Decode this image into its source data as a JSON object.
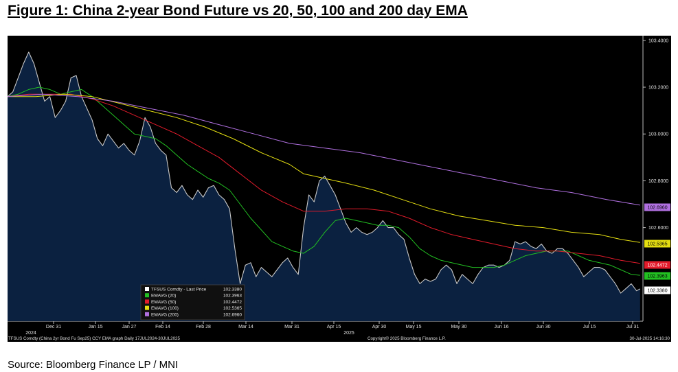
{
  "figure": {
    "title": "Figure 1:  China 2-year Bond Future vs 20, 50, 100 and 200 day EMA",
    "source": "Source: Bloomberg Finance LP / MNI"
  },
  "chart_data": {
    "type": "line",
    "x_ticks": [
      "Dec 31",
      "Jan 15",
      "Jan 27",
      "Feb 14",
      "Feb 28",
      "Mar 14",
      "Mar 31",
      "Apr 15",
      "Apr 30",
      "May 15",
      "May 30",
      "Jun 16",
      "Jun 30",
      "Jul 15",
      "Jul 31"
    ],
    "year_labels": [
      "2024",
      "2025"
    ],
    "y_ticks": [
      "103.4000",
      "103.2000",
      "103.0000",
      "102.8000",
      "102.6000"
    ],
    "ylim": [
      102.2,
      103.42
    ],
    "footer_left": "TFSUS Comdty (China 2yr Bond Fu Sep25) CCY EMA graph  Daily 17JUL2024-30JUL2025",
    "footer_center": "Copyright© 2025 Bloomberg Finance L.P.",
    "footer_right": "30-Jul-2025 14:16:30",
    "legend": [
      {
        "label": "TFSUS Comdty - Last Price",
        "value": "102.3380",
        "color": "#ffffff"
      },
      {
        "label": "EMAVG (20)",
        "value": "102.3963",
        "color": "#22c022"
      },
      {
        "label": "EMAVG (50)",
        "value": "102.4472",
        "color": "#e21b2b"
      },
      {
        "label": "EMAVG (100)",
        "value": "102.5365",
        "color": "#e5df11"
      },
      {
        "label": "EMAVG (200)",
        "value": "102.6960",
        "color": "#b070e0"
      }
    ],
    "series": [
      {
        "name": "TFSUS Comdty - Last Price",
        "color": "#c8c8c8",
        "fill": "#0b2140",
        "points": [
          [
            0,
            103.16
          ],
          [
            1.5,
            103.18
          ],
          [
            3,
            103.24
          ],
          [
            4.5,
            103.3
          ],
          [
            6,
            103.35
          ],
          [
            7.5,
            103.3
          ],
          [
            9,
            103.22
          ],
          [
            10.5,
            103.14
          ],
          [
            12,
            103.16
          ],
          [
            13.5,
            103.07
          ],
          [
            15,
            103.1
          ],
          [
            16.5,
            103.14
          ],
          [
            18,
            103.24
          ],
          [
            19.5,
            103.25
          ],
          [
            21,
            103.16
          ],
          [
            22.5,
            103.11
          ],
          [
            24,
            103.06
          ],
          [
            25.5,
            102.98
          ],
          [
            27,
            102.95
          ],
          [
            28.5,
            103.0
          ],
          [
            30,
            102.97
          ],
          [
            31.5,
            102.94
          ],
          [
            33,
            102.96
          ],
          [
            34.5,
            102.93
          ],
          [
            36,
            102.91
          ],
          [
            37.5,
            102.97
          ],
          [
            39,
            103.07
          ],
          [
            40.5,
            103.03
          ],
          [
            42,
            102.96
          ],
          [
            43.5,
            102.93
          ],
          [
            45,
            102.91
          ],
          [
            46.5,
            102.77
          ],
          [
            48,
            102.75
          ],
          [
            49.5,
            102.78
          ],
          [
            51,
            102.74
          ],
          [
            52.5,
            102.72
          ],
          [
            54,
            102.76
          ],
          [
            55.5,
            102.73
          ],
          [
            57,
            102.77
          ],
          [
            58.5,
            102.78
          ],
          [
            60,
            102.74
          ],
          [
            61.5,
            102.72
          ],
          [
            63,
            102.68
          ],
          [
            64.5,
            102.51
          ],
          [
            66,
            102.36
          ],
          [
            67.5,
            102.44
          ],
          [
            69,
            102.45
          ],
          [
            70.5,
            102.39
          ],
          [
            72,
            102.43
          ],
          [
            73.5,
            102.41
          ],
          [
            75,
            102.39
          ],
          [
            76.5,
            102.42
          ],
          [
            78,
            102.45
          ],
          [
            79.5,
            102.47
          ],
          [
            81,
            102.43
          ],
          [
            82.5,
            102.4
          ],
          [
            84,
            102.6
          ],
          [
            85.5,
            102.74
          ],
          [
            87,
            102.71
          ],
          [
            88.5,
            102.8
          ],
          [
            90,
            102.82
          ],
          [
            91.5,
            102.78
          ],
          [
            93,
            102.74
          ],
          [
            94.5,
            102.68
          ],
          [
            96,
            102.62
          ],
          [
            97.5,
            102.58
          ],
          [
            99,
            102.6
          ],
          [
            100.5,
            102.58
          ],
          [
            102,
            102.57
          ],
          [
            103.5,
            102.58
          ],
          [
            105,
            102.6
          ],
          [
            106.5,
            102.63
          ],
          [
            108,
            102.6
          ],
          [
            109.5,
            102.6
          ],
          [
            111,
            102.57
          ],
          [
            112.5,
            102.55
          ],
          [
            114,
            102.47
          ],
          [
            115.5,
            102.4
          ],
          [
            117,
            102.36
          ],
          [
            118.5,
            102.38
          ],
          [
            120,
            102.37
          ],
          [
            121.5,
            102.38
          ],
          [
            123,
            102.42
          ],
          [
            124.5,
            102.44
          ],
          [
            126,
            102.42
          ],
          [
            127.5,
            102.36
          ],
          [
            129,
            102.4
          ],
          [
            130.5,
            102.38
          ],
          [
            132,
            102.36
          ],
          [
            133.5,
            102.4
          ],
          [
            135,
            102.43
          ],
          [
            136.5,
            102.44
          ],
          [
            138,
            102.44
          ],
          [
            139.5,
            102.43
          ],
          [
            141,
            102.44
          ],
          [
            142.5,
            102.46
          ],
          [
            144,
            102.54
          ],
          [
            145.5,
            102.53
          ],
          [
            147,
            102.54
          ],
          [
            148.5,
            102.52
          ],
          [
            150,
            102.51
          ],
          [
            151.5,
            102.53
          ],
          [
            153,
            102.5
          ],
          [
            154.5,
            102.49
          ],
          [
            156,
            102.51
          ],
          [
            157.5,
            102.51
          ],
          [
            159,
            102.49
          ],
          [
            160.5,
            102.46
          ],
          [
            162,
            102.43
          ],
          [
            163.5,
            102.39
          ],
          [
            165,
            102.41
          ],
          [
            166.5,
            102.43
          ],
          [
            168,
            102.43
          ],
          [
            169.5,
            102.42
          ],
          [
            171,
            102.39
          ],
          [
            172.5,
            102.36
          ],
          [
            174,
            102.32
          ],
          [
            175.5,
            102.34
          ],
          [
            177,
            102.36
          ],
          [
            178.5,
            102.33
          ],
          [
            179.5,
            102.338
          ]
        ]
      },
      {
        "name": "EMAVG (20)",
        "color": "#22c022",
        "points": [
          [
            0,
            103.16
          ],
          [
            3,
            103.17
          ],
          [
            6,
            103.19
          ],
          [
            9,
            103.2
          ],
          [
            12,
            103.19
          ],
          [
            15,
            103.17
          ],
          [
            18,
            103.18
          ],
          [
            21,
            103.19
          ],
          [
            24,
            103.16
          ],
          [
            27,
            103.12
          ],
          [
            30,
            103.08
          ],
          [
            33,
            103.04
          ],
          [
            36,
            103.0
          ],
          [
            39,
            102.99
          ],
          [
            42,
            102.98
          ],
          [
            45,
            102.95
          ],
          [
            48,
            102.91
          ],
          [
            51,
            102.87
          ],
          [
            54,
            102.84
          ],
          [
            57,
            102.81
          ],
          [
            60,
            102.79
          ],
          [
            63,
            102.76
          ],
          [
            66,
            102.7
          ],
          [
            69,
            102.64
          ],
          [
            72,
            102.59
          ],
          [
            75,
            102.54
          ],
          [
            78,
            102.52
          ],
          [
            81,
            102.5
          ],
          [
            84,
            102.49
          ],
          [
            87,
            102.52
          ],
          [
            90,
            102.58
          ],
          [
            93,
            102.63
          ],
          [
            96,
            102.64
          ],
          [
            99,
            102.63
          ],
          [
            102,
            102.62
          ],
          [
            105,
            102.61
          ],
          [
            108,
            102.61
          ],
          [
            111,
            102.6
          ],
          [
            114,
            102.56
          ],
          [
            117,
            102.51
          ],
          [
            120,
            102.48
          ],
          [
            123,
            102.46
          ],
          [
            126,
            102.45
          ],
          [
            129,
            102.44
          ],
          [
            132,
            102.43
          ],
          [
            135,
            102.43
          ],
          [
            138,
            102.43
          ],
          [
            141,
            102.44
          ],
          [
            144,
            102.46
          ],
          [
            147,
            102.48
          ],
          [
            150,
            102.49
          ],
          [
            153,
            102.5
          ],
          [
            156,
            102.5
          ],
          [
            159,
            102.5
          ],
          [
            162,
            102.48
          ],
          [
            165,
            102.46
          ],
          [
            168,
            102.45
          ],
          [
            171,
            102.44
          ],
          [
            174,
            102.42
          ],
          [
            177,
            102.4
          ],
          [
            179.5,
            102.3963
          ]
        ]
      },
      {
        "name": "EMAVG (50)",
        "color": "#e21b2b",
        "points": [
          [
            0,
            103.16
          ],
          [
            6,
            103.17
          ],
          [
            12,
            103.17
          ],
          [
            18,
            103.17
          ],
          [
            24,
            103.15
          ],
          [
            30,
            103.12
          ],
          [
            36,
            103.08
          ],
          [
            42,
            103.04
          ],
          [
            48,
            103.0
          ],
          [
            54,
            102.95
          ],
          [
            60,
            102.9
          ],
          [
            66,
            102.83
          ],
          [
            72,
            102.76
          ],
          [
            78,
            102.71
          ],
          [
            84,
            102.67
          ],
          [
            90,
            102.67
          ],
          [
            96,
            102.68
          ],
          [
            102,
            102.68
          ],
          [
            108,
            102.67
          ],
          [
            114,
            102.64
          ],
          [
            120,
            102.6
          ],
          [
            126,
            102.57
          ],
          [
            132,
            102.55
          ],
          [
            138,
            102.53
          ],
          [
            144,
            102.51
          ],
          [
            150,
            102.5
          ],
          [
            156,
            102.5
          ],
          [
            162,
            102.49
          ],
          [
            168,
            102.48
          ],
          [
            174,
            102.46
          ],
          [
            179.5,
            102.4472
          ]
        ]
      },
      {
        "name": "EMAVG (100)",
        "color": "#e5df11",
        "points": [
          [
            0,
            103.16
          ],
          [
            8,
            103.16
          ],
          [
            16,
            103.17
          ],
          [
            24,
            103.16
          ],
          [
            32,
            103.13
          ],
          [
            40,
            103.1
          ],
          [
            48,
            103.07
          ],
          [
            56,
            103.03
          ],
          [
            64,
            102.98
          ],
          [
            72,
            102.92
          ],
          [
            80,
            102.87
          ],
          [
            84,
            102.83
          ],
          [
            90,
            102.81
          ],
          [
            96,
            102.79
          ],
          [
            104,
            102.76
          ],
          [
            112,
            102.72
          ],
          [
            120,
            102.68
          ],
          [
            128,
            102.65
          ],
          [
            136,
            102.63
          ],
          [
            144,
            102.61
          ],
          [
            152,
            102.6
          ],
          [
            160,
            102.58
          ],
          [
            168,
            102.57
          ],
          [
            174,
            102.55
          ],
          [
            179.5,
            102.5365
          ]
        ]
      },
      {
        "name": "EMAVG (200)",
        "color": "#b070e0",
        "points": [
          [
            0,
            103.16
          ],
          [
            10,
            103.17
          ],
          [
            20,
            103.16
          ],
          [
            30,
            103.14
          ],
          [
            40,
            103.11
          ],
          [
            50,
            103.08
          ],
          [
            60,
            103.04
          ],
          [
            70,
            103.0
          ],
          [
            80,
            102.96
          ],
          [
            90,
            102.94
          ],
          [
            100,
            102.92
          ],
          [
            110,
            102.89
          ],
          [
            120,
            102.86
          ],
          [
            130,
            102.83
          ],
          [
            140,
            102.8
          ],
          [
            150,
            102.77
          ],
          [
            160,
            102.75
          ],
          [
            170,
            102.72
          ],
          [
            179.5,
            102.696
          ]
        ]
      }
    ],
    "end_labels": [
      {
        "text": "102.6960",
        "value": 102.696,
        "color": "#b070e0"
      },
      {
        "text": "102.5365",
        "value": 102.5365,
        "color": "#e5df11"
      },
      {
        "text": "102.4472",
        "value": 102.4472,
        "color": "#e21b2b"
      },
      {
        "text": "102.3963",
        "value": 102.3963,
        "color": "#22c022"
      },
      {
        "text": "102.3380",
        "value": 102.338,
        "color": "#ffffff"
      }
    ],
    "grid": false,
    "legend_position": "bottom-center"
  }
}
